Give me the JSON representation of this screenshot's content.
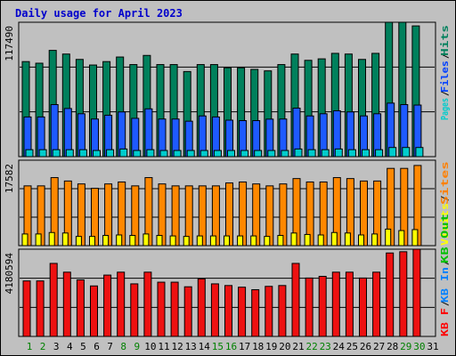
{
  "chart_data": {
    "type": "bar",
    "title": "Daily usage for April 2023",
    "categories": [
      "1",
      "2",
      "3",
      "4",
      "5",
      "6",
      "7",
      "8",
      "9",
      "10",
      "11",
      "12",
      "13",
      "14",
      "15",
      "16",
      "17",
      "18",
      "19",
      "20",
      "21",
      "22",
      "23",
      "24",
      "25",
      "26",
      "27",
      "28",
      "29",
      "30",
      "31"
    ],
    "weekend_days": [
      "1",
      "2",
      "8",
      "9",
      "15",
      "16",
      "22",
      "23",
      "29",
      "30"
    ],
    "panels": [
      {
        "name": "hits-files-pages",
        "axis_label": "117490",
        "ylim": [
          0,
          117490
        ],
        "legend": [
          {
            "text": "Pages",
            "color": "#00cccc"
          },
          {
            "text": "Files",
            "color": "#0040ff"
          },
          {
            "text": "Hits",
            "color": "#00805c"
          }
        ],
        "series": [
          {
            "name": "Hits",
            "color": "#00805c",
            "values": [
              83100,
              81700,
              92900,
              89700,
              85000,
              80100,
              83100,
              87100,
              80500,
              88500,
              80500,
              80500,
              74400,
              80500,
              80500,
              77700,
              77700,
              76300,
              75000,
              80500,
              89700,
              84200,
              85500,
              90300,
              89700,
              85000,
              90300,
              117500,
              117500,
              114300
            ]
          },
          {
            "name": "Files",
            "color": "#1e5aff",
            "values": [
              34700,
              34700,
              45500,
              42100,
              37500,
              32900,
              36200,
              39100,
              33500,
              41800,
              32900,
              32900,
              31000,
              35600,
              34700,
              31900,
              31500,
              31500,
              32800,
              32900,
              42400,
              35600,
              37500,
              40100,
              39100,
              35600,
              37500,
              46800,
              45500,
              45100
            ]
          },
          {
            "name": "Pages",
            "color": "#00cccc",
            "values": [
              6100,
              6100,
              6100,
              6100,
              6100,
              5400,
              6100,
              6700,
              5400,
              6100,
              5400,
              5400,
              5400,
              5400,
              5400,
              5400,
              5400,
              5400,
              5400,
              5400,
              6700,
              6100,
              6100,
              6700,
              6100,
              6100,
              6100,
              8000,
              8000,
              8000
            ]
          }
        ]
      },
      {
        "name": "visits-sites",
        "axis_label": "17582",
        "ylim": [
          0,
          17582
        ],
        "legend": [
          {
            "text": "Visits",
            "color": "#ffff00"
          },
          {
            "text": "Sites",
            "color": "#ff8000"
          }
        ],
        "series": [
          {
            "name": "Sites",
            "color": "#ff8800",
            "values": [
              12300,
              12300,
              14000,
              13300,
              12700,
              11800,
              12700,
              13100,
              12300,
              14000,
              12700,
              12300,
              12300,
              12300,
              12300,
              12900,
              13100,
              12700,
              12300,
              12700,
              13800,
              13100,
              13100,
              14000,
              13800,
              13300,
              13300,
              15900,
              15900,
              16500
            ]
          },
          {
            "name": "Visits",
            "color": "#ffff00",
            "values": [
              2400,
              2400,
              2700,
              2600,
              1900,
              1900,
              2100,
              2200,
              2100,
              2400,
              2100,
              2000,
              1900,
              2000,
              2000,
              2000,
              2000,
              2000,
              1900,
              2100,
              2600,
              2300,
              2200,
              2700,
              2600,
              2200,
              2400,
              3400,
              3100,
              3300
            ]
          }
        ]
      },
      {
        "name": "kbytes",
        "axis_label": "4180594",
        "ylim": [
          0,
          4180594
        ],
        "legend": [
          {
            "text": "KB F",
            "color": "#ff0000"
          },
          {
            "text": "KB In",
            "color": "#0080ff"
          },
          {
            "text": "KB Out",
            "color": "#00c000"
          }
        ],
        "series": [
          {
            "name": "KB F",
            "color": "#ee1111",
            "values": [
              2660000,
              2660000,
              3500000,
              3080000,
              2710000,
              2420000,
              2940000,
              3080000,
              2520000,
              3080000,
              2600000,
              2600000,
              2380000,
              2760000,
              2520000,
              2440000,
              2360000,
              2240000,
              2400000,
              2440000,
              3500000,
              2800000,
              2880000,
              3080000,
              3080000,
              2800000,
              3080000,
              4000000,
              4060000,
              4180000
            ]
          }
        ]
      }
    ]
  }
}
